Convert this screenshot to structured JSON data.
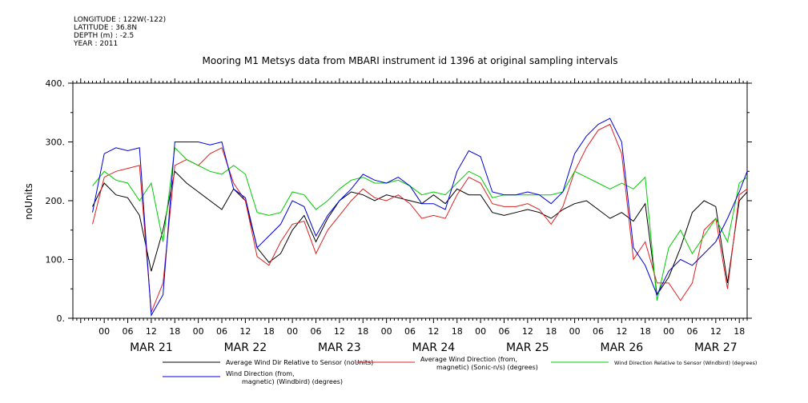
{
  "meta": {
    "longitude": "LONGITUDE : 122W(-122)",
    "latitude": "LATITUDE : 36.8N",
    "depth": "DEPTH (m) : -2.5",
    "year": "YEAR : 2011"
  },
  "chart_data": {
    "type": "line",
    "title": "Mooring M1 Metsys data from MBARI instrument id 1396 at original sampling intervals",
    "ylabel": "noUnits",
    "ylim": [
      0,
      400
    ],
    "yticks": [
      0,
      100,
      200,
      300,
      400
    ],
    "xlim_hours": [
      -8,
      164
    ],
    "hour_tick_labels": [
      "00",
      "06",
      "12",
      "18",
      "00",
      "06",
      "12",
      "18",
      "00",
      "06",
      "12",
      "18",
      "00",
      "06",
      "12",
      "18",
      "00",
      "06",
      "12",
      "18",
      "00",
      "06",
      "12",
      "18",
      "00",
      "06",
      "12",
      "18"
    ],
    "hour_tick_positions": [
      0,
      6,
      12,
      18,
      24,
      30,
      36,
      42,
      48,
      54,
      60,
      66,
      72,
      78,
      84,
      90,
      96,
      102,
      108,
      114,
      120,
      126,
      132,
      138,
      144,
      150,
      156,
      162
    ],
    "day_labels": [
      "MAR 21",
      "MAR 22",
      "MAR 23",
      "MAR 24",
      "MAR 25",
      "MAR 26",
      "MAR 27"
    ],
    "day_positions": [
      12,
      36,
      60,
      84,
      108,
      132,
      156
    ],
    "x_hours": [
      -3,
      0,
      3,
      6,
      9,
      12,
      15,
      18,
      21,
      24,
      27,
      30,
      33,
      36,
      39,
      42,
      45,
      48,
      51,
      54,
      57,
      60,
      63,
      66,
      69,
      72,
      75,
      78,
      81,
      84,
      87,
      90,
      93,
      96,
      99,
      102,
      105,
      108,
      111,
      114,
      117,
      120,
      123,
      126,
      129,
      132,
      135,
      138,
      141,
      144,
      147,
      150,
      153,
      156,
      159,
      162,
      164
    ],
    "series": [
      {
        "name": "Average Wind Dir Relative to Sensor (noUnits)",
        "color": "#000000",
        "values": [
          190,
          230,
          210,
          205,
          175,
          80,
          150,
          250,
          230,
          215,
          200,
          185,
          220,
          200,
          120,
          95,
          110,
          150,
          175,
          130,
          170,
          200,
          215,
          210,
          200,
          210,
          205,
          200,
          195,
          210,
          195,
          220,
          210,
          210,
          180,
          175,
          180,
          185,
          180,
          170,
          185,
          195,
          200,
          185,
          170,
          180,
          165,
          195,
          40,
          70,
          120,
          180,
          200,
          190,
          60,
          200,
          215
        ]
      },
      {
        "name": "Average Wind Direction (from, magnetic) (Sonic-n/s) (degrees)",
        "color": "#e02020",
        "values": [
          160,
          240,
          250,
          255,
          260,
          10,
          60,
          260,
          270,
          260,
          280,
          290,
          230,
          200,
          105,
          90,
          130,
          160,
          165,
          110,
          150,
          175,
          200,
          220,
          205,
          200,
          210,
          195,
          170,
          175,
          170,
          210,
          240,
          230,
          195,
          190,
          190,
          195,
          185,
          160,
          190,
          250,
          290,
          320,
          330,
          280,
          100,
          130,
          60,
          60,
          30,
          60,
          150,
          170,
          50,
          210,
          220
        ]
      },
      {
        "name": "Wind Direction Relative to Sensor (Windbird) (degrees)",
        "color": "#00cc00",
        "values": [
          225,
          250,
          235,
          230,
          200,
          230,
          130,
          290,
          270,
          260,
          250,
          245,
          260,
          245,
          180,
          175,
          180,
          215,
          210,
          185,
          200,
          220,
          235,
          240,
          230,
          230,
          235,
          225,
          210,
          215,
          210,
          230,
          250,
          240,
          205,
          210,
          210,
          210,
          210,
          210,
          215,
          250,
          240,
          230,
          220,
          230,
          220,
          240,
          30,
          120,
          150,
          110,
          140,
          170,
          130,
          230,
          240
        ]
      },
      {
        "name": "Wind Direction (from, magnetic) (Windbird) (degrees)",
        "color": "#0000dd",
        "values": [
          180,
          280,
          290,
          285,
          290,
          5,
          40,
          300,
          300,
          300,
          295,
          300,
          220,
          205,
          120,
          140,
          160,
          200,
          190,
          140,
          175,
          200,
          220,
          245,
          235,
          230,
          240,
          225,
          195,
          195,
          185,
          250,
          285,
          275,
          215,
          210,
          210,
          215,
          210,
          195,
          215,
          280,
          310,
          330,
          340,
          300,
          120,
          90,
          40,
          80,
          100,
          90,
          110,
          130,
          170,
          215,
          250
        ]
      }
    ]
  },
  "legend": [
    {
      "line1": "Average Wind Dir Relative to Sensor (noUnits)",
      "line2": ""
    },
    {
      "line1": "Average Wind Direction (from,",
      "line2": "magnetic) (Sonic-n/s) (degrees)"
    },
    {
      "line1": "Wind Direction Relative to Sensor (Windbird) (degrees)",
      "line2": ""
    },
    {
      "line1": "Wind Direction (from,",
      "line2": "magnetic) (Windbird) (degrees)"
    }
  ]
}
